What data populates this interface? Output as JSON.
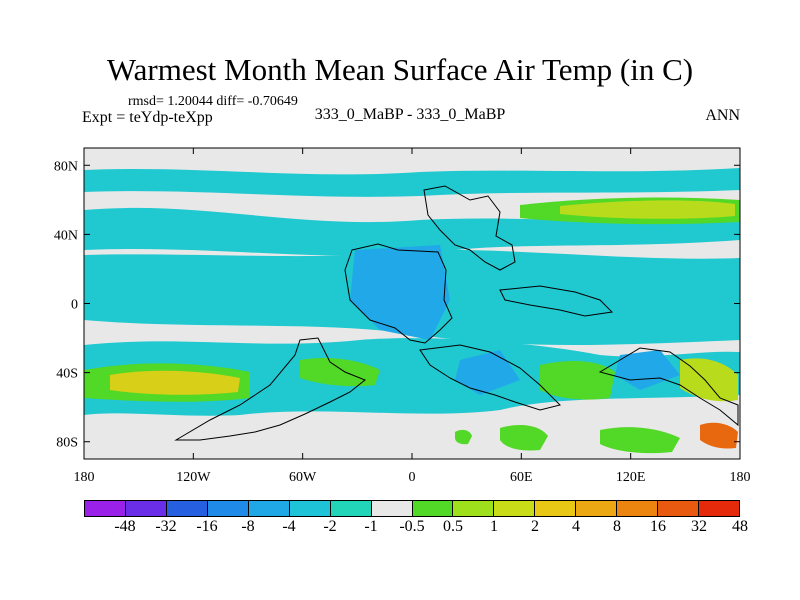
{
  "title": "Warmest Month Mean Surface Air Temp (in C)",
  "stats_line": "rmsd= 1.20044 diff= -0.70649",
  "expt_label": "Expt = teYdp-teXpp",
  "center_label": "333_0_MaBP - 333_0_MaBP",
  "right_label": "ANN",
  "lat_labels": [
    "80N",
    "40N",
    "0",
    "40S",
    "80S"
  ],
  "lon_labels": [
    "180",
    "120W",
    "60W",
    "0",
    "60E",
    "120E",
    "180"
  ],
  "colorbar": {
    "colors": [
      "#9a22e8",
      "#6a2ee8",
      "#2660e0",
      "#1f8ae8",
      "#20a8e6",
      "#1fc3d8",
      "#22d5b8",
      "#e8e8e8",
      "#52d826",
      "#9ee01c",
      "#c8dc18",
      "#e8c814",
      "#eca812",
      "#ec8410",
      "#e85a10",
      "#e42a0a"
    ],
    "ticks": [
      "-48",
      "-32",
      "-16",
      "-8",
      "-4",
      "-2",
      "-1",
      "-0.5",
      "0.5",
      "1",
      "2",
      "4",
      "8",
      "16",
      "32",
      "48"
    ]
  },
  "map_colors": {
    "background": "#e8e8e8",
    "main": "#20c8d0",
    "blue": "#20a8e8",
    "green": "#52d826",
    "yellowgreen": "#b8dc1c",
    "yellow": "#d8d018",
    "orange": "#e86810",
    "coast": "#000000"
  }
}
